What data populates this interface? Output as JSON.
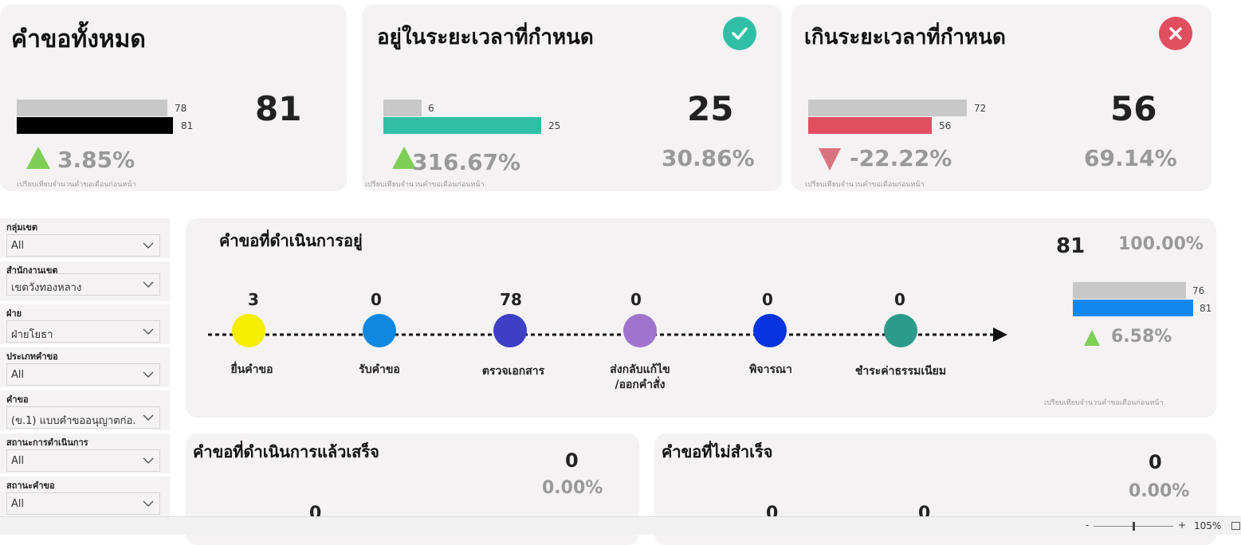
{
  "kpi_cards": [
    {
      "title": "คำขอทั้งหมด",
      "bar_prev": "78",
      "bar_curr": "81",
      "value": "81",
      "change": "3.85%",
      "note": "เปรียบเทียบจำนวนคำขอเดือนก่อนหน้า",
      "color": "#000000"
    },
    {
      "title": "อยู่ในระยะเวลาที่กำหนด",
      "bar_prev": "6",
      "bar_curr": "25",
      "value": "25",
      "share": "30.86%",
      "change": "316.67%",
      "note": "เปรียบเทียบจำนวนคำขอเดือนก่อนหน้า",
      "color": "#30bfa6",
      "icon": "check-circle-icon"
    },
    {
      "title": "เกินระยะเวลาที่กำหนด",
      "bar_prev": "72",
      "bar_curr": "56",
      "value": "56",
      "share": "69.14%",
      "change": "-22.22%",
      "note": "เปรียบเทียบจำนวนคำขอเดือนก่อนหน้า",
      "color": "#e04e60",
      "icon": "x-circle-icon"
    }
  ],
  "filters": [
    {
      "label": "กลุ่มเขต",
      "value": "All"
    },
    {
      "label": "สำนักงานเขต",
      "value": "เขตวังทองหลาง"
    },
    {
      "label": "ฝ่าย",
      "value": "ฝ่ายโยธา"
    },
    {
      "label": "ประเภทคำขอ",
      "value": "All"
    },
    {
      "label": "คำขอ",
      "value": "(ข.1) แบบคำขออนุญาตก่อ..."
    },
    {
      "label": "สถานะการดำเนินการ",
      "value": "All"
    },
    {
      "label": "สถานะคำขอ",
      "value": "All"
    }
  ],
  "in_progress": {
    "title": "คำขอที่ดำเนินการอยู่",
    "total": "81",
    "total_pct": "100.00%",
    "bar_prev": "76",
    "bar_curr": "81",
    "change": "6.58%",
    "note": "เปรียบเทียบจำนวนคำขอเดือนก่อนหน้า",
    "stages": [
      {
        "label": "ยื่นคำขอ",
        "count": "3",
        "color": "#f5ee00"
      },
      {
        "label": "รับคำขอ",
        "count": "0",
        "color": "#1188e0"
      },
      {
        "label": "ตรวจเอกสาร",
        "count": "78",
        "color": "#3d3fc4"
      },
      {
        "label": "ส่งกลับแก้ไข\n/ออกคำสั่ง",
        "label_line1": "ส่งกลับแก้ไข",
        "label_line2": "/ออกคำสั่ง",
        "count": "0",
        "color": "#a074cc"
      },
      {
        "label": "พิจารณา",
        "count": "0",
        "color": "#0a33e0"
      },
      {
        "label": "ชำระค่าธรรมเนียม",
        "count": "0",
        "color": "#2b9c8c"
      }
    ]
  },
  "completed": {
    "title": "คำขอที่ดำเนินการแล้วเสร็จ",
    "value": "0",
    "pct": "0.00%",
    "partial_values": [
      "0"
    ]
  },
  "failed": {
    "title": "คำขอที่ไม่สำเร็จ",
    "value": "0",
    "pct": "0.00%",
    "partial_values": [
      "0",
      "0"
    ]
  },
  "statusbar": {
    "zoom": "105%",
    "minus": "-",
    "plus": "+"
  }
}
